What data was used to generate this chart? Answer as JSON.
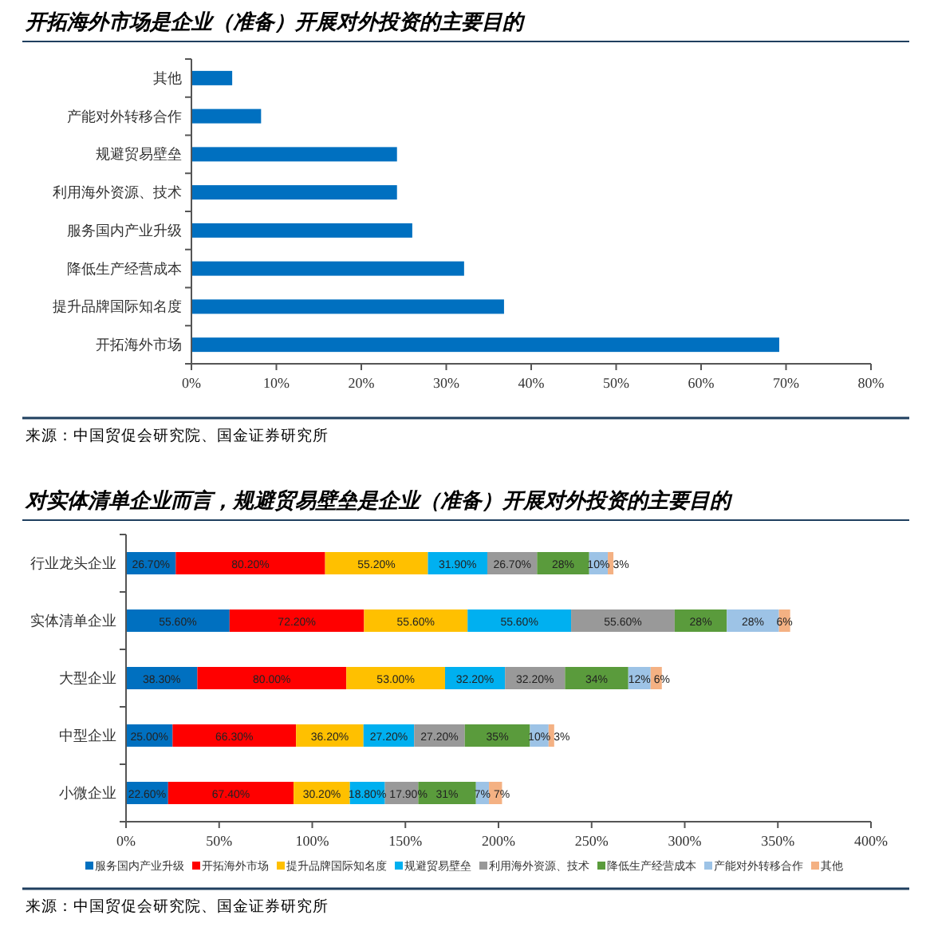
{
  "chart_data": [
    {
      "type": "bar",
      "orientation": "horizontal",
      "title": "开拓海外市场是企业（准备）开展对外投资的主要目的",
      "categories": [
        "其他",
        "产能对外转移合作",
        "规避贸易壁垒",
        "利用海外资源、技术",
        "服务国内产业升级",
        "降低生产经营成本",
        "提升品牌国际知名度",
        "开拓海外市场"
      ],
      "values": [
        4.8,
        8.2,
        24.2,
        24.2,
        26,
        32.1,
        36.8,
        69.2
      ],
      "color": "#0070c0",
      "xlim": [
        0,
        80
      ],
      "xticks": [
        {
          "value": 0,
          "label": "0%"
        },
        {
          "value": 10,
          "label": "10%"
        },
        {
          "value": 20,
          "label": "20%"
        },
        {
          "value": 30,
          "label": "30%"
        },
        {
          "value": 40,
          "label": "40%"
        },
        {
          "value": 50,
          "label": "50%"
        },
        {
          "value": 60,
          "label": "60%"
        },
        {
          "value": 70,
          "label": "70%"
        },
        {
          "value": 80,
          "label": "80%"
        }
      ],
      "grid": false,
      "legend": false,
      "annotations": [
        "来源：中国贸促会研究院、国金证券研究所"
      ]
    },
    {
      "type": "bar",
      "orientation": "horizontal",
      "stacked": true,
      "title": "对实体清单企业而言，规避贸易壁垒是企业（准备）开展对外投资的主要目的",
      "categories": [
        "行业龙头企业",
        "实体清单企业",
        "大型企业",
        "中型企业",
        "小微企业"
      ],
      "series": [
        {
          "name": "服务国内产业升级",
          "color": "#0070c0",
          "values": [
            26.7,
            55.6,
            38.3,
            25,
            22.6
          ],
          "value_labels": [
            "26.70%",
            "55.60%",
            "38.30%",
            "25.00%",
            "22.60%"
          ]
        },
        {
          "name": "开拓海外市场",
          "color": "#ff0000",
          "values": [
            80.2,
            72.2,
            80,
            66.3,
            67.4
          ],
          "value_labels": [
            "80.20%",
            "72.20%",
            "80.00%",
            "66.30%",
            "67.40%"
          ]
        },
        {
          "name": "提升品牌国际知名度",
          "color": "#ffc000",
          "values": [
            55.2,
            55.6,
            53,
            36.2,
            30.2
          ],
          "value_labels": [
            "55.20%",
            "55.60%",
            "53.00%",
            "36.20%",
            "30.20%"
          ]
        },
        {
          "name": "规避贸易壁垒",
          "color": "#00b0f0",
          "values": [
            31.9,
            55.6,
            32.2,
            27.2,
            18.8
          ],
          "value_labels": [
            "31.90%",
            "55.60%",
            "32.20%",
            "27.20%",
            "18.80%"
          ]
        },
        {
          "name": "利用海外资源、技术",
          "color": "#999999",
          "values": [
            26.7,
            55.6,
            32.2,
            27.2,
            17.9
          ],
          "value_labels": [
            "26.70%",
            "55.60%",
            "32.20%",
            "27.20%",
            "17.90%"
          ]
        },
        {
          "name": "降低生产经营成本",
          "color": "#5a9b3c",
          "values": [
            28,
            28,
            34,
            35,
            31
          ],
          "value_labels": [
            "28%",
            "28%",
            "34%",
            "35%",
            "31%"
          ]
        },
        {
          "name": "产能对外转移合作",
          "color": "#9dc3e6",
          "values": [
            10,
            28,
            12,
            10,
            7
          ],
          "value_labels": [
            "10%",
            "28%",
            "12%",
            "10%",
            "7%"
          ]
        },
        {
          "name": "其他",
          "color": "#f4b183",
          "values": [
            3,
            6,
            6,
            3,
            7
          ],
          "value_labels": [
            "3%",
            "6%",
            "6%",
            "3%",
            "7%"
          ]
        }
      ],
      "xlim": [
        0,
        400
      ],
      "xticks": [
        {
          "value": 0,
          "label": "0%"
        },
        {
          "value": 50,
          "label": "50%"
        },
        {
          "value": 100,
          "label": "100%"
        },
        {
          "value": 150,
          "label": "150%"
        },
        {
          "value": 200,
          "label": "200%"
        },
        {
          "value": 250,
          "label": "250%"
        },
        {
          "value": 300,
          "label": "300%"
        },
        {
          "value": 350,
          "label": "350%"
        },
        {
          "value": 400,
          "label": "400%"
        }
      ],
      "grid": false,
      "legend": "bottom",
      "annotations": [
        "来源：中国贸促会研究院、国金证券研究所"
      ]
    }
  ]
}
